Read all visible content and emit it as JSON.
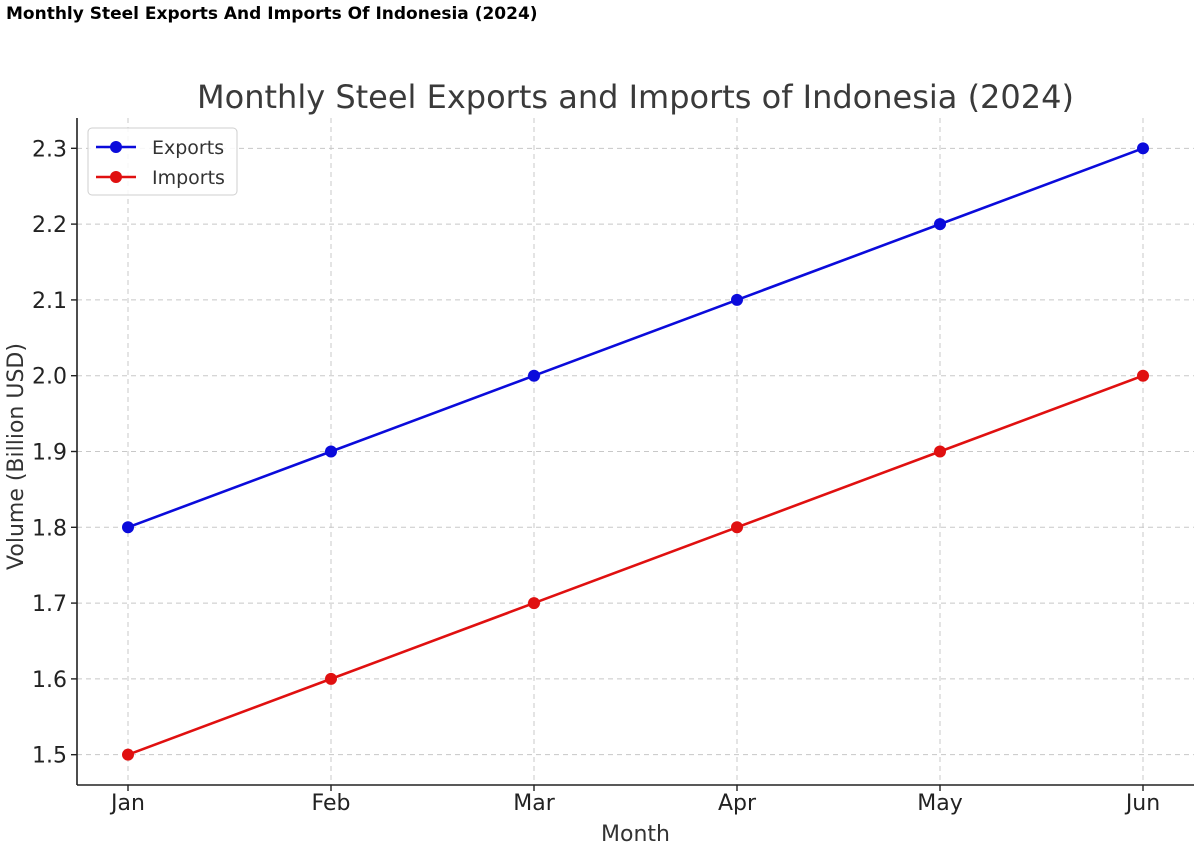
{
  "page": {
    "heading": "Monthly Steel Exports And Imports Of Indonesia (2024)"
  },
  "chart_data": {
    "type": "line",
    "title": "Monthly Steel Exports and Imports of Indonesia (2024)",
    "xlabel": "Month",
    "ylabel": "Volume (Billion USD)",
    "categories": [
      "Jan",
      "Feb",
      "Mar",
      "Apr",
      "May",
      "Jun"
    ],
    "series": [
      {
        "name": "Exports",
        "values": [
          1.8,
          1.9,
          2.0,
          2.1,
          2.2,
          2.3
        ],
        "color": "#0b0bdb",
        "marker": "circle"
      },
      {
        "name": "Imports",
        "values": [
          1.5,
          1.6,
          1.7,
          1.8,
          1.9,
          2.0
        ],
        "color": "#e01010",
        "marker": "circle"
      }
    ],
    "ylim": [
      1.46,
      2.34
    ],
    "yticks": [
      1.5,
      1.6,
      1.7,
      1.8,
      1.9,
      2.0,
      2.1,
      2.2,
      2.3
    ],
    "ytick_labels": [
      "1.5",
      "1.6",
      "1.7",
      "1.8",
      "1.9",
      "2.0",
      "2.1",
      "2.2",
      "2.3"
    ],
    "grid": true,
    "legend_position": "top-left",
    "axis_color": "#222222",
    "grid_color": "#c8c8c8"
  }
}
